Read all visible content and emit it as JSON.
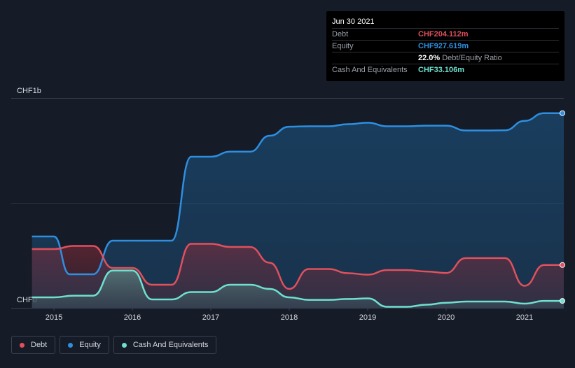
{
  "chart_data": {
    "type": "area",
    "y_top_label": "CHF1b",
    "y_zero_label": "CHF0",
    "ylim": [
      0,
      1000
    ],
    "xlim": [
      2014.72,
      2021.5
    ],
    "grid": true,
    "x_ticks": [
      {
        "value": 2015,
        "label": "2015"
      },
      {
        "value": 2016,
        "label": "2016"
      },
      {
        "value": 2017,
        "label": "2017"
      },
      {
        "value": 2018,
        "label": "2018"
      },
      {
        "value": 2019,
        "label": "2019"
      },
      {
        "value": 2020,
        "label": "2020"
      },
      {
        "value": 2021,
        "label": "2021"
      }
    ],
    "series": [
      {
        "name": "Equity",
        "color": "#2e8fe0",
        "points": [
          [
            2014.72,
            340
          ],
          [
            2015.0,
            340
          ],
          [
            2015.2,
            160
          ],
          [
            2015.5,
            160
          ],
          [
            2015.75,
            320
          ],
          [
            2016.0,
            320
          ],
          [
            2016.25,
            320
          ],
          [
            2016.5,
            320
          ],
          [
            2016.75,
            720
          ],
          [
            2017.0,
            720
          ],
          [
            2017.25,
            744
          ],
          [
            2017.5,
            744
          ],
          [
            2017.75,
            820
          ],
          [
            2018.0,
            863
          ],
          [
            2018.25,
            865
          ],
          [
            2018.5,
            865
          ],
          [
            2018.75,
            875
          ],
          [
            2019.0,
            882
          ],
          [
            2019.25,
            865
          ],
          [
            2019.5,
            865
          ],
          [
            2019.75,
            868
          ],
          [
            2020.0,
            868
          ],
          [
            2020.25,
            845
          ],
          [
            2020.5,
            845
          ],
          [
            2020.75,
            846
          ],
          [
            2021.0,
            891
          ],
          [
            2021.25,
            927.6
          ],
          [
            2021.5,
            927.6
          ]
        ]
      },
      {
        "name": "Debt",
        "color": "#e0505d",
        "points": [
          [
            2014.72,
            280
          ],
          [
            2015.0,
            280
          ],
          [
            2015.25,
            295
          ],
          [
            2015.5,
            295
          ],
          [
            2015.75,
            190
          ],
          [
            2016.0,
            190
          ],
          [
            2016.25,
            110
          ],
          [
            2016.5,
            110
          ],
          [
            2016.75,
            305
          ],
          [
            2017.0,
            305
          ],
          [
            2017.25,
            290
          ],
          [
            2017.5,
            290
          ],
          [
            2017.75,
            215
          ],
          [
            2018.0,
            90
          ],
          [
            2018.25,
            185
          ],
          [
            2018.5,
            185
          ],
          [
            2018.75,
            165
          ],
          [
            2019.0,
            158
          ],
          [
            2019.25,
            180
          ],
          [
            2019.5,
            180
          ],
          [
            2019.75,
            173
          ],
          [
            2020.0,
            166
          ],
          [
            2020.25,
            237
          ],
          [
            2020.5,
            237
          ],
          [
            2020.75,
            237
          ],
          [
            2021.0,
            105
          ],
          [
            2021.25,
            204.1
          ],
          [
            2021.5,
            204.1
          ]
        ]
      },
      {
        "name": "Cash And Equivalents",
        "color": "#6fe0cf",
        "points": [
          [
            2014.72,
            50
          ],
          [
            2015.0,
            50
          ],
          [
            2015.25,
            58
          ],
          [
            2015.5,
            58
          ],
          [
            2015.75,
            178
          ],
          [
            2016.0,
            178
          ],
          [
            2016.25,
            40
          ],
          [
            2016.5,
            40
          ],
          [
            2016.75,
            75
          ],
          [
            2017.0,
            75
          ],
          [
            2017.25,
            110
          ],
          [
            2017.5,
            110
          ],
          [
            2017.75,
            90
          ],
          [
            2018.0,
            50
          ],
          [
            2018.25,
            38
          ],
          [
            2018.5,
            38
          ],
          [
            2018.75,
            42
          ],
          [
            2019.0,
            45
          ],
          [
            2019.25,
            5
          ],
          [
            2019.5,
            5
          ],
          [
            2019.75,
            15
          ],
          [
            2020.0,
            24
          ],
          [
            2020.25,
            30
          ],
          [
            2020.5,
            30
          ],
          [
            2020.75,
            30
          ],
          [
            2021.0,
            20
          ],
          [
            2021.25,
            33.1
          ],
          [
            2021.5,
            33.1
          ]
        ]
      }
    ]
  },
  "tooltip": {
    "date": "Jun 30 2021",
    "rows": [
      {
        "label": "Debt",
        "value": "CHF204.112m",
        "color": "#e0505d"
      },
      {
        "label": "Equity",
        "value": "CHF927.619m",
        "color": "#2e8fe0"
      },
      {
        "label": "",
        "value": "22.0%",
        "sub": "Debt/Equity Ratio",
        "color": "#ffffff"
      },
      {
        "label": "Cash And Equivalents",
        "value": "CHF33.106m",
        "color": "#6fe0cf"
      }
    ]
  },
  "legend": [
    {
      "label": "Debt",
      "color": "#e0505d"
    },
    {
      "label": "Equity",
      "color": "#2e8fe0"
    },
    {
      "label": "Cash And Equivalents",
      "color": "#6fe0cf"
    }
  ]
}
